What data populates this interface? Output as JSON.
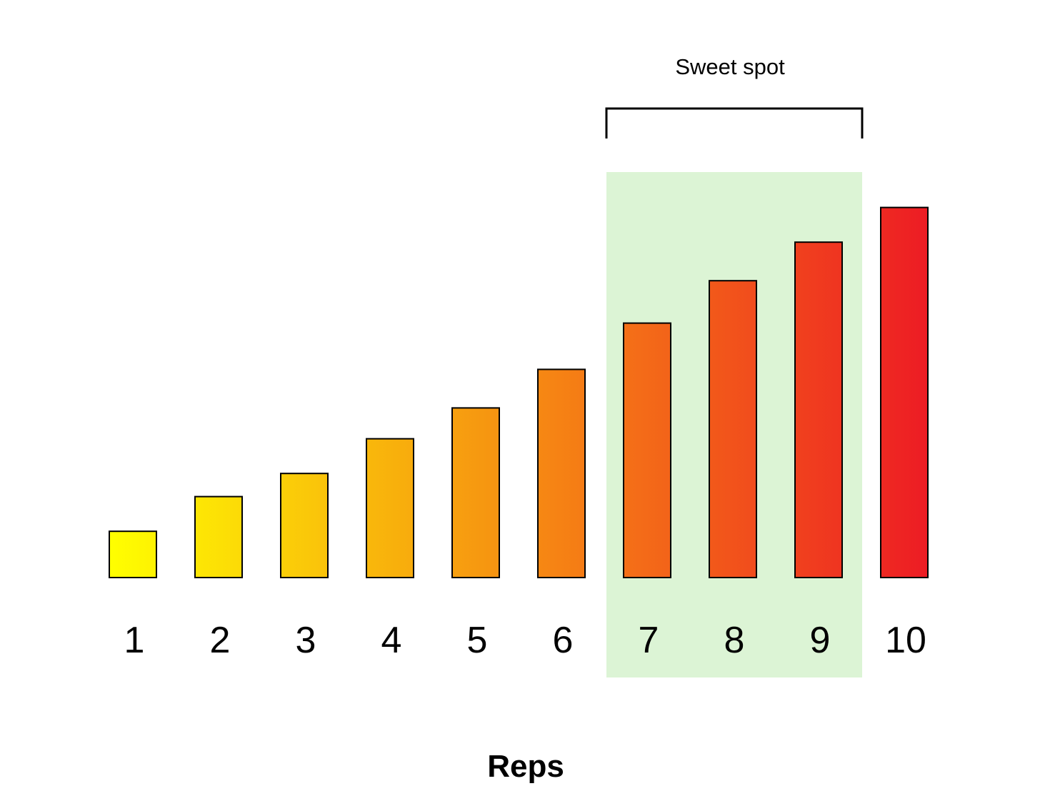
{
  "chart_data": {
    "type": "bar",
    "categories": [
      "1",
      "2",
      "3",
      "4",
      "5",
      "6",
      "7",
      "8",
      "9",
      "10"
    ],
    "values": [
      1.2,
      2.1,
      2.7,
      3.6,
      4.4,
      5.4,
      6.6,
      7.7,
      8.7,
      9.6
    ],
    "xlabel": "Reps",
    "ylabel": "",
    "ylim": [
      0,
      10.5
    ],
    "grid": false,
    "legend": "none",
    "highlight": {
      "label": "Sweet spot",
      "categories": [
        "7",
        "8",
        "9"
      ],
      "color": "#dcf4d5"
    },
    "colors": {
      "start": "#ffff00",
      "end": "#ed1c24",
      "outline": "#000000"
    }
  }
}
